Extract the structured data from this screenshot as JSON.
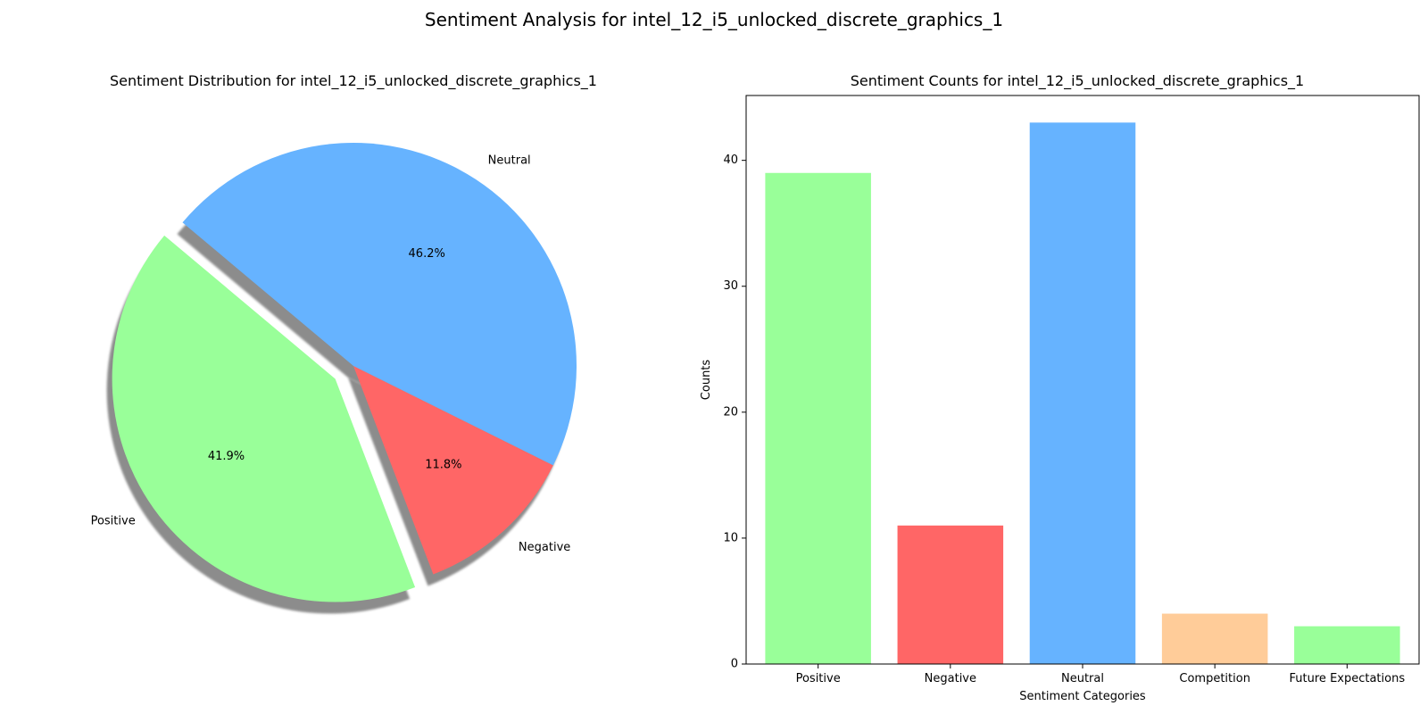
{
  "figure": {
    "suptitle": "Sentiment Analysis for intel_12_i5_unlocked_discrete_graphics_1"
  },
  "chart_data": [
    {
      "type": "pie",
      "title": "Sentiment Distribution for intel_12_i5_unlocked_discrete_graphics_1",
      "labels": [
        "Positive",
        "Negative",
        "Neutral"
      ],
      "values": [
        39,
        11,
        43
      ],
      "percent_labels": [
        "41.9%",
        "11.8%",
        "46.2%"
      ],
      "colors": [
        "#99ff99",
        "#ff6666",
        "#66b3ff"
      ],
      "explode": [
        0.1,
        0,
        0
      ],
      "shadow": true,
      "start_angle_deg": 140
    },
    {
      "type": "bar",
      "title": "Sentiment Counts for intel_12_i5_unlocked_discrete_graphics_1",
      "categories": [
        "Positive",
        "Negative",
        "Neutral",
        "Competition",
        "Future Expectations"
      ],
      "values": [
        39,
        11,
        43,
        4,
        3
      ],
      "colors": [
        "#99ff99",
        "#ff6666",
        "#66b3ff",
        "#ffcc99",
        "#99ff99"
      ],
      "xlabel": "Sentiment Categories",
      "ylabel": "Counts",
      "ylim": [
        0,
        45.15
      ],
      "yticks": [
        0,
        10,
        20,
        30,
        40
      ],
      "grid": false
    }
  ]
}
